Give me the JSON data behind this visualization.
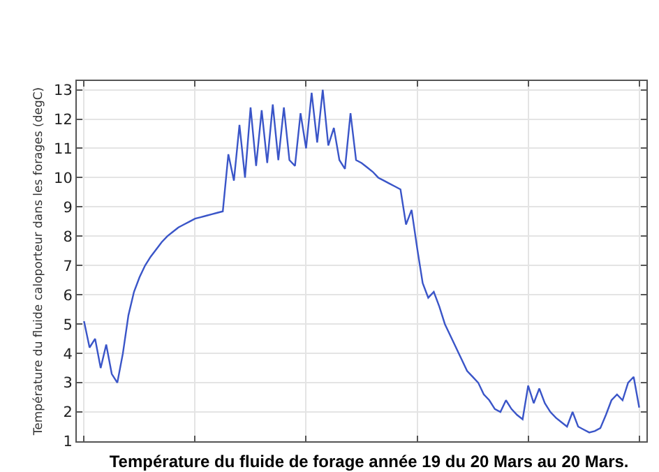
{
  "chart_data": {
    "type": "line",
    "title": "Température du fluide de forage année 19 du 20 Mars au 20 Mars.",
    "ylabel": "Température du fluide caloporteur dans les forages (degC)",
    "categories": [
      null,
      null,
      null,
      null,
      null,
      null,
      null,
      null,
      null,
      null,
      null,
      null,
      null,
      null,
      null,
      null,
      null,
      null,
      null,
      null,
      null,
      null,
      null,
      null,
      null,
      null,
      null,
      null,
      null,
      null,
      null,
      null,
      null,
      null,
      null,
      null,
      null,
      null,
      null,
      null,
      null,
      null,
      null,
      null,
      null,
      null,
      null,
      null,
      null,
      null,
      null,
      null,
      null,
      null,
      null,
      null,
      null,
      null,
      null,
      null,
      null,
      null,
      null,
      null,
      null,
      null,
      null,
      null,
      null,
      null,
      null,
      null,
      null,
      null,
      null,
      null,
      null,
      null,
      null,
      null,
      null,
      null,
      null,
      null,
      null,
      null,
      null,
      null,
      null,
      null,
      null,
      null,
      null,
      null,
      null,
      null,
      null,
      null,
      null,
      null,
      null
    ],
    "series": [
      {
        "color": "#3a55c8",
        "values": [
          5.1,
          4.2,
          4.5,
          3.5,
          4.3,
          3.3,
          3.0,
          4.0,
          5.3,
          6.1,
          6.6,
          7.0,
          7.3,
          7.55,
          7.8,
          8.0,
          8.15,
          8.3,
          8.4,
          8.5,
          8.6,
          8.65,
          8.7,
          8.75,
          8.8,
          8.85,
          10.8,
          9.9,
          11.8,
          10.0,
          12.4,
          10.4,
          12.3,
          10.5,
          12.5,
          10.6,
          12.4,
          10.6,
          10.4,
          12.2,
          11.0,
          12.9,
          11.2,
          13.0,
          11.1,
          11.7,
          10.6,
          10.3,
          12.2,
          10.6,
          10.5,
          10.35,
          10.2,
          10.0,
          9.9,
          9.8,
          9.7,
          9.6,
          8.4,
          8.9,
          7.6,
          6.4,
          5.9,
          6.1,
          5.6,
          5.0,
          4.6,
          4.2,
          3.8,
          3.4,
          3.2,
          3.0,
          2.6,
          2.4,
          2.1,
          2.0,
          2.4,
          2.1,
          1.9,
          1.75,
          2.9,
          2.3,
          2.8,
          2.3,
          2.0,
          1.8,
          1.65,
          1.5,
          2.0,
          1.5,
          1.4,
          1.3,
          1.35,
          1.45,
          1.9,
          2.4,
          2.6,
          2.4,
          3.0,
          3.2,
          2.15
        ]
      }
    ],
    "ylim": [
      1,
      13.3
    ],
    "yticks": [
      1,
      2,
      3,
      4,
      5,
      6,
      7,
      8,
      9,
      10,
      11,
      12,
      13
    ],
    "tick_labels": "y",
    "grid": true,
    "marker": "none",
    "line_style": "solid"
  }
}
